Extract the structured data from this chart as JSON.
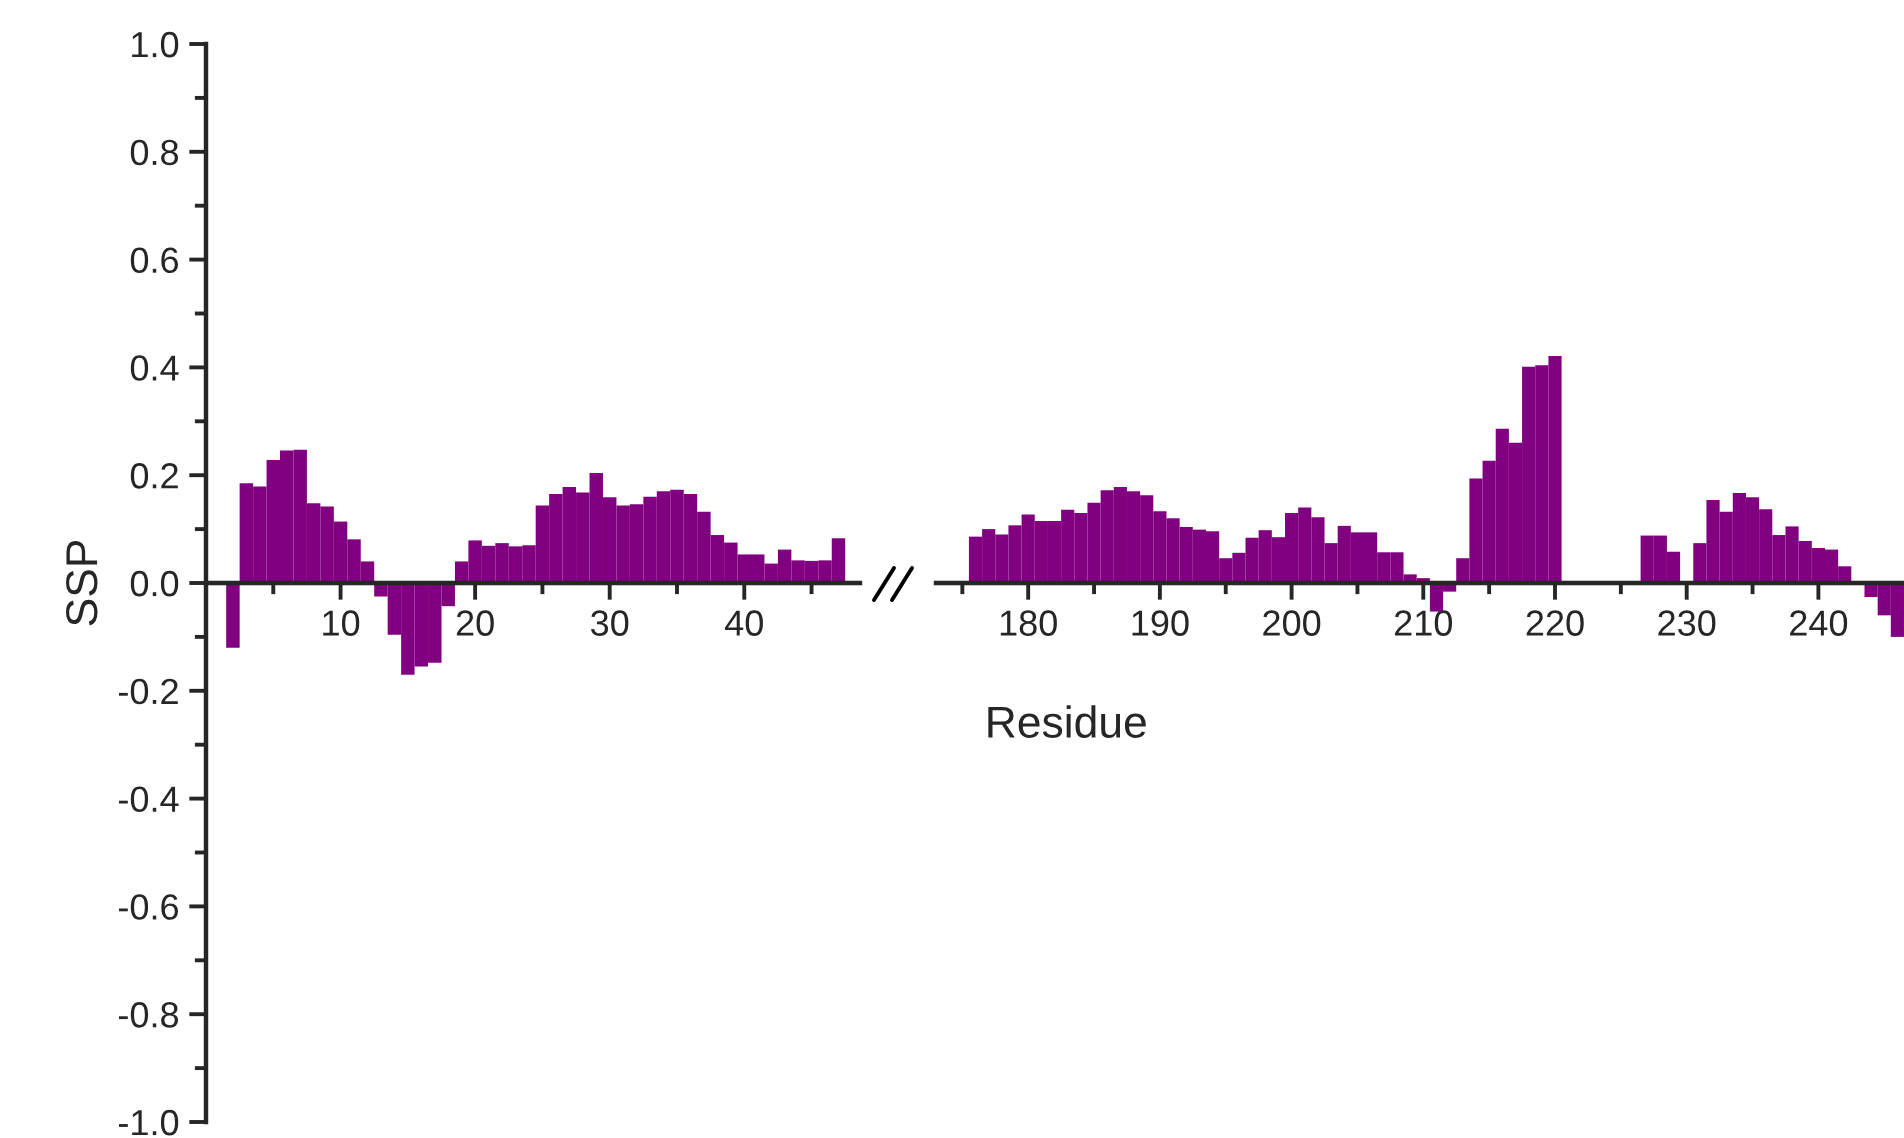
{
  "chart_data": [
    {
      "type": "bar",
      "ylabel": "SSP",
      "xlabel": "Residue",
      "x": [
        2,
        3,
        4,
        5,
        6,
        7,
        8,
        9,
        10,
        11,
        12,
        13,
        14,
        15,
        16,
        17,
        18,
        19,
        20,
        21,
        22,
        23,
        24,
        25,
        26,
        27,
        28,
        29,
        30,
        31,
        32,
        33,
        34,
        35,
        36,
        37,
        38,
        39,
        40,
        41,
        42,
        43,
        44,
        45,
        46,
        47
      ],
      "series": [
        {
          "color": "#800080",
          "values": [
            -0.12,
            0.185,
            0.179,
            0.228,
            0.246,
            0.247,
            0.148,
            0.142,
            0.114,
            0.081,
            0.04,
            -0.025,
            -0.096,
            -0.17,
            -0.155,
            -0.148,
            -0.043,
            0.04,
            0.079,
            0.069,
            0.074,
            0.068,
            0.07,
            0.144,
            0.165,
            0.178,
            0.168,
            0.204,
            0.159,
            0.144,
            0.146,
            0.16,
            0.17,
            0.173,
            0.165,
            0.132,
            0.089,
            0.075,
            0.053,
            0.053,
            0.036,
            0.062,
            0.042,
            0.041,
            0.042,
            0.083
          ]
        }
      ],
      "xlim": [
        0,
        48.6
      ],
      "ylim": [
        -1.0,
        1.0
      ],
      "xticks": [
        {
          "value": 5,
          "label": null
        },
        10,
        {
          "value": 15,
          "label": null
        },
        20,
        {
          "value": 25,
          "label": null
        },
        30,
        {
          "value": 35,
          "label": null
        },
        40,
        {
          "value": 45,
          "label": null
        }
      ],
      "yticks": [
        {
          "value": -1.0,
          "label": "-1.0"
        },
        {
          "value": -0.9,
          "label": null
        },
        {
          "value": -0.8,
          "label": "-0.8"
        },
        {
          "value": -0.7,
          "label": null
        },
        {
          "value": -0.6,
          "label": "-0.6"
        },
        {
          "value": -0.5,
          "label": null
        },
        {
          "value": -0.4,
          "label": "-0.4"
        },
        {
          "value": -0.3,
          "label": null
        },
        {
          "value": -0.2,
          "label": "-0.2"
        },
        {
          "value": -0.1,
          "label": null
        },
        {
          "value": 0.0,
          "label": "0.0"
        },
        {
          "value": 0.1,
          "label": null
        },
        {
          "value": 0.2,
          "label": "0.2"
        },
        {
          "value": 0.3,
          "label": null
        },
        {
          "value": 0.4,
          "label": "0.4"
        },
        {
          "value": 0.5,
          "label": null
        },
        {
          "value": 0.6,
          "label": "0.6"
        },
        {
          "value": 0.7,
          "label": null
        },
        {
          "value": 0.8,
          "label": "0.8"
        },
        {
          "value": 0.9,
          "label": null
        },
        {
          "value": 1.0,
          "label": "1.0"
        }
      ],
      "grid": false,
      "legend": false
    },
    {
      "type": "bar",
      "x": [
        176,
        177,
        178,
        179,
        180,
        181,
        182,
        183,
        184,
        185,
        186,
        187,
        188,
        189,
        190,
        191,
        192,
        193,
        194,
        195,
        196,
        197,
        198,
        199,
        200,
        201,
        202,
        203,
        204,
        205,
        206,
        207,
        208,
        209,
        210,
        211,
        212,
        213,
        214,
        215,
        216,
        217,
        218,
        219,
        220,
        221,
        222,
        223,
        224,
        225,
        226,
        227,
        228,
        229,
        230,
        231,
        232,
        233,
        234,
        235,
        236,
        237,
        238,
        239,
        240,
        241,
        242,
        243,
        244,
        245,
        246
      ],
      "series": [
        {
          "color": "#800080",
          "values": [
            0.086,
            0.1,
            0.09,
            0.107,
            0.127,
            0.115,
            0.115,
            0.136,
            0.13,
            0.149,
            0.172,
            0.178,
            0.17,
            0.163,
            0.133,
            0.12,
            0.104,
            0.099,
            0.096,
            0.046,
            0.056,
            0.084,
            0.098,
            0.085,
            0.13,
            0.14,
            0.122,
            0.074,
            0.106,
            0.094,
            0.094,
            0.057,
            0.057,
            0.016,
            0.009,
            -0.053,
            -0.016,
            0.046,
            0.194,
            0.227,
            0.286,
            0.26,
            0.401,
            0.404,
            0.421,
            null,
            null,
            null,
            null,
            null,
            null,
            0.088,
            0.088,
            0.058,
            null,
            0.074,
            0.154,
            0.132,
            0.167,
            0.159,
            0.137,
            0.089,
            0.105,
            0.078,
            0.065,
            0.062,
            0.031,
            null,
            -0.026,
            -0.06,
            -0.1
          ]
        }
      ],
      "xlim": [
        173,
        246.5
      ],
      "ylim": [
        -1.0,
        1.0
      ],
      "xticks": [
        {
          "value": 175,
          "label": null
        },
        180,
        {
          "value": 185,
          "label": null
        },
        190,
        {
          "value": 195,
          "label": null
        },
        200,
        {
          "value": 205,
          "label": null
        },
        210,
        {
          "value": 215,
          "label": null
        },
        220,
        {
          "value": 225,
          "label": null
        },
        230,
        {
          "value": 235,
          "label": null
        },
        240,
        {
          "value": 245,
          "label": null
        }
      ],
      "tick_labels": "x",
      "grid": false,
      "legend": false
    }
  ]
}
